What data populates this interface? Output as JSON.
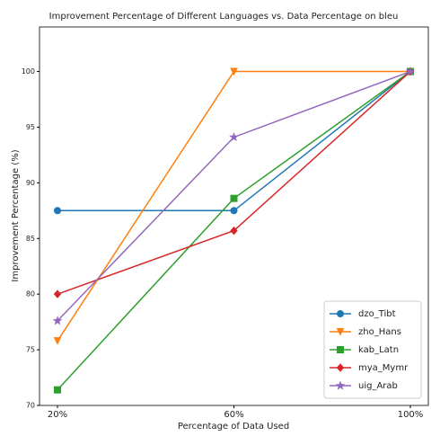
{
  "chart_data": {
    "type": "line",
    "title": "Improvement Percentage of Different Languages vs. Data Percentage on bleu",
    "x_label": "Percentage of Data Used",
    "y_label": "Improvement Percentage (%)",
    "categories": [
      "20%",
      "60%",
      "100%"
    ],
    "series": [
      {
        "name": "dzo_Tibt",
        "color": "#1f77b4",
        "marker": "circle",
        "values": [
          87.5,
          87.5,
          100
        ]
      },
      {
        "name": "zho_Hans",
        "color": "#ff7f0e",
        "marker": "triangle-down",
        "values": [
          75.8,
          100,
          100
        ]
      },
      {
        "name": "kab_Latn",
        "color": "#2ca02c",
        "marker": "square",
        "values": [
          71.4,
          88.6,
          100
        ]
      },
      {
        "name": "mya_Mymr",
        "color": "#d62728",
        "marker": "diamond",
        "values": [
          80,
          85.7,
          100
        ]
      },
      {
        "name": "uig_Arab",
        "color": "#9467bd",
        "marker": "star",
        "values": [
          77.6,
          94.1,
          100
        ]
      }
    ],
    "ylim": [
      70,
      104
    ],
    "yticks": [
      70,
      75,
      80,
      85,
      90,
      95,
      100
    ],
    "legend": "lower right"
  }
}
